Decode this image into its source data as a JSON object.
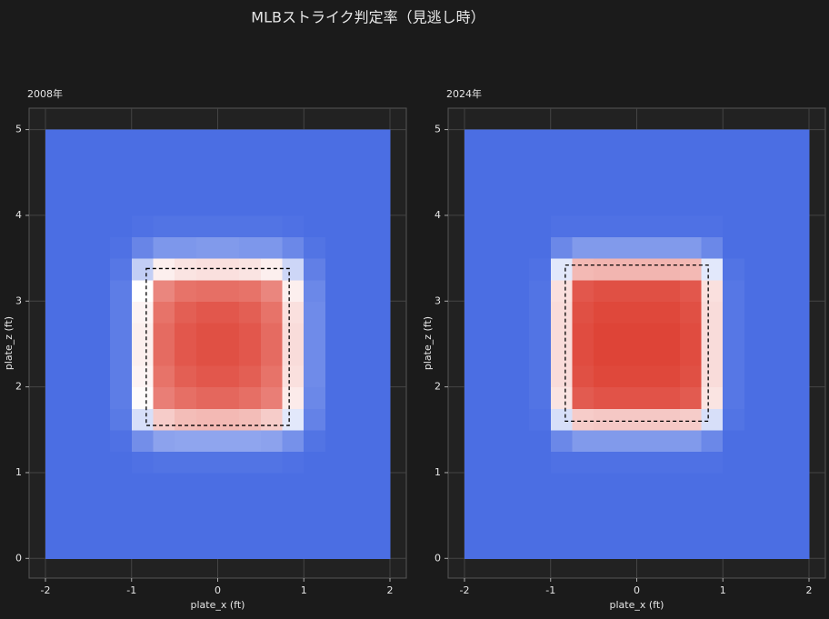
{
  "suptitle": "MLBストライク判定率（見逃し時）",
  "chart_data": [
    {
      "type": "heatmap",
      "title": "2008年",
      "xlabel": "plate_x (ft)",
      "ylabel": "plate_z (ft)",
      "xlim": [
        -2.19,
        2.19
      ],
      "ylim": [
        -0.23,
        5.25
      ],
      "xticks": [
        -2,
        -1,
        0,
        1,
        2
      ],
      "yticks": [
        0,
        1,
        2,
        3,
        4,
        5
      ],
      "grid": true,
      "colormap": [
        "#4b6ee3",
        "#ffffff",
        "#dd3c2f"
      ],
      "x_bins": [
        -2,
        -1.75,
        -1.5,
        -1.25,
        -1,
        -0.75,
        -0.5,
        -0.25,
        0,
        0.25,
        0.5,
        0.75,
        1,
        1.25,
        1.5,
        1.75,
        2
      ],
      "y_bins": [
        0,
        0.25,
        0.5,
        0.75,
        1,
        1.25,
        1.5,
        1.75,
        2,
        2.25,
        2.5,
        2.75,
        3,
        3.25,
        3.5,
        3.75,
        4,
        4.25,
        4.5,
        4.75,
        5
      ],
      "z": [
        [
          0,
          0,
          0,
          0,
          0,
          0,
          0,
          0,
          0,
          0,
          0,
          0,
          0,
          0,
          0,
          0
        ],
        [
          0,
          0,
          0,
          0,
          0,
          0,
          0,
          0,
          0,
          0,
          0,
          0,
          0,
          0,
          0,
          0
        ],
        [
          0,
          0,
          0,
          0,
          0,
          0,
          0,
          0,
          0,
          0,
          0,
          0,
          0,
          0,
          0,
          0
        ],
        [
          0,
          0,
          0,
          0,
          0,
          0,
          0,
          0,
          0,
          0,
          0,
          0,
          0,
          0,
          0,
          0
        ],
        [
          0,
          0,
          0,
          0,
          0.01,
          0.02,
          0.02,
          0.02,
          0.02,
          0.02,
          0.02,
          0.01,
          0,
          0,
          0,
          0
        ],
        [
          0,
          0,
          0,
          0.01,
          0.11,
          0.18,
          0.19,
          0.19,
          0.19,
          0.19,
          0.18,
          0.12,
          0.02,
          0,
          0,
          0
        ],
        [
          0,
          0,
          0,
          0.04,
          0.39,
          0.63,
          0.67,
          0.68,
          0.68,
          0.67,
          0.63,
          0.42,
          0.07,
          0,
          0,
          0
        ],
        [
          0,
          0,
          0,
          0.05,
          0.51,
          0.83,
          0.87,
          0.89,
          0.89,
          0.87,
          0.83,
          0.55,
          0.09,
          0,
          0,
          0
        ],
        [
          0,
          0,
          0,
          0.05,
          0.53,
          0.86,
          0.91,
          0.93,
          0.93,
          0.91,
          0.86,
          0.58,
          0.1,
          0,
          0,
          0
        ],
        [
          0,
          0,
          0,
          0.05,
          0.54,
          0.88,
          0.93,
          0.95,
          0.95,
          0.93,
          0.88,
          0.59,
          0.1,
          0,
          0,
          0
        ],
        [
          0,
          0,
          0,
          0.05,
          0.54,
          0.88,
          0.93,
          0.95,
          0.95,
          0.93,
          0.88,
          0.59,
          0.1,
          0,
          0,
          0
        ],
        [
          0,
          0,
          0,
          0.05,
          0.53,
          0.86,
          0.91,
          0.93,
          0.93,
          0.91,
          0.86,
          0.58,
          0.1,
          0,
          0,
          0
        ],
        [
          0,
          0,
          0,
          0.05,
          0.5,
          0.81,
          0.86,
          0.87,
          0.87,
          0.86,
          0.81,
          0.54,
          0.09,
          0,
          0,
          0
        ],
        [
          0,
          0,
          0,
          0.03,
          0.33,
          0.54,
          0.57,
          0.58,
          0.58,
          0.57,
          0.54,
          0.36,
          0.06,
          0,
          0,
          0
        ],
        [
          0,
          0,
          0,
          0.01,
          0.08,
          0.14,
          0.14,
          0.15,
          0.15,
          0.14,
          0.14,
          0.09,
          0.02,
          0,
          0,
          0
        ],
        [
          0,
          0,
          0,
          0,
          0.01,
          0.02,
          0.02,
          0.02,
          0.02,
          0.02,
          0.02,
          0.01,
          0,
          0,
          0,
          0
        ],
        [
          0,
          0,
          0,
          0,
          0,
          0,
          0,
          0,
          0,
          0,
          0,
          0,
          0,
          0,
          0,
          0
        ],
        [
          0,
          0,
          0,
          0,
          0,
          0,
          0,
          0,
          0,
          0,
          0,
          0,
          0,
          0,
          0,
          0
        ],
        [
          0,
          0,
          0,
          0,
          0,
          0,
          0,
          0,
          0,
          0,
          0,
          0,
          0,
          0,
          0,
          0
        ],
        [
          0,
          0,
          0,
          0,
          0,
          0,
          0,
          0,
          0,
          0,
          0,
          0,
          0,
          0,
          0,
          0
        ]
      ],
      "strike_zone": {
        "x": [
          -0.83,
          0.83
        ],
        "z": [
          1.55,
          3.38
        ]
      }
    },
    {
      "type": "heatmap",
      "title": "2024年",
      "xlabel": "plate_x (ft)",
      "ylabel": "plate_z (ft)",
      "xlim": [
        -2.19,
        2.19
      ],
      "ylim": [
        -0.23,
        5.25
      ],
      "xticks": [
        -2,
        -1,
        0,
        1,
        2
      ],
      "yticks": [
        0,
        1,
        2,
        3,
        4,
        5
      ],
      "grid": true,
      "colormap": [
        "#4b6ee3",
        "#ffffff",
        "#dd3c2f"
      ],
      "x_bins": [
        -2,
        -1.75,
        -1.5,
        -1.25,
        -1,
        -0.75,
        -0.5,
        -0.25,
        0,
        0.25,
        0.5,
        0.75,
        1,
        1.25,
        1.5,
        1.75,
        2
      ],
      "y_bins": [
        0,
        0.25,
        0.5,
        0.75,
        1,
        1.25,
        1.5,
        1.75,
        2,
        2.25,
        2.5,
        2.75,
        3,
        3.25,
        3.5,
        3.75,
        4,
        4.25,
        4.5,
        4.75,
        5
      ],
      "z": [
        [
          0,
          0,
          0,
          0,
          0,
          0,
          0,
          0,
          0,
          0,
          0,
          0,
          0,
          0,
          0,
          0
        ],
        [
          0,
          0,
          0,
          0,
          0,
          0,
          0,
          0,
          0,
          0,
          0,
          0,
          0,
          0,
          0,
          0
        ],
        [
          0,
          0,
          0,
          0,
          0,
          0,
          0,
          0,
          0,
          0,
          0,
          0,
          0,
          0,
          0,
          0
        ],
        [
          0,
          0,
          0,
          0,
          0,
          0,
          0,
          0,
          0,
          0,
          0,
          0,
          0,
          0,
          0,
          0
        ],
        [
          0,
          0,
          0,
          0,
          0.01,
          0.01,
          0.01,
          0.01,
          0.01,
          0.01,
          0.01,
          0.01,
          0,
          0,
          0,
          0
        ],
        [
          0,
          0,
          0,
          0,
          0.09,
          0.15,
          0.15,
          0.15,
          0.15,
          0.15,
          0.15,
          0.09,
          0,
          0,
          0,
          0
        ],
        [
          0,
          0,
          0,
          0.01,
          0.39,
          0.63,
          0.64,
          0.64,
          0.64,
          0.64,
          0.63,
          0.39,
          0.02,
          0,
          0,
          0
        ],
        [
          0,
          0,
          0,
          0.02,
          0.57,
          0.92,
          0.94,
          0.94,
          0.94,
          0.94,
          0.92,
          0.57,
          0.03,
          0,
          0,
          0
        ],
        [
          0,
          0,
          0,
          0.02,
          0.59,
          0.95,
          0.97,
          0.97,
          0.97,
          0.97,
          0.95,
          0.59,
          0.03,
          0,
          0,
          0
        ],
        [
          0,
          0,
          0,
          0.02,
          0.59,
          0.96,
          0.98,
          0.98,
          0.98,
          0.98,
          0.96,
          0.59,
          0.03,
          0,
          0,
          0
        ],
        [
          0,
          0,
          0,
          0.02,
          0.59,
          0.96,
          0.98,
          0.98,
          0.98,
          0.98,
          0.96,
          0.59,
          0.03,
          0,
          0,
          0
        ],
        [
          0,
          0,
          0,
          0.02,
          0.59,
          0.95,
          0.97,
          0.97,
          0.97,
          0.97,
          0.95,
          0.59,
          0.03,
          0,
          0,
          0
        ],
        [
          0,
          0,
          0,
          0.02,
          0.58,
          0.93,
          0.95,
          0.95,
          0.95,
          0.95,
          0.93,
          0.58,
          0.03,
          0,
          0,
          0
        ],
        [
          0,
          0,
          0,
          0.01,
          0.42,
          0.68,
          0.69,
          0.69,
          0.69,
          0.69,
          0.68,
          0.42,
          0.02,
          0,
          0,
          0
        ],
        [
          0,
          0,
          0,
          0,
          0.09,
          0.15,
          0.15,
          0.15,
          0.15,
          0.15,
          0.15,
          0.09,
          0,
          0,
          0,
          0
        ],
        [
          0,
          0,
          0,
          0,
          0.01,
          0.01,
          0.01,
          0.01,
          0.01,
          0.01,
          0.01,
          0.01,
          0,
          0,
          0,
          0
        ],
        [
          0,
          0,
          0,
          0,
          0,
          0,
          0,
          0,
          0,
          0,
          0,
          0,
          0,
          0,
          0,
          0
        ],
        [
          0,
          0,
          0,
          0,
          0,
          0,
          0,
          0,
          0,
          0,
          0,
          0,
          0,
          0,
          0,
          0
        ],
        [
          0,
          0,
          0,
          0,
          0,
          0,
          0,
          0,
          0,
          0,
          0,
          0,
          0,
          0,
          0,
          0
        ],
        [
          0,
          0,
          0,
          0,
          0,
          0,
          0,
          0,
          0,
          0,
          0,
          0,
          0,
          0,
          0,
          0
        ]
      ],
      "strike_zone": {
        "x": [
          -0.83,
          0.83
        ],
        "z": [
          1.6,
          3.42
        ]
      }
    }
  ]
}
